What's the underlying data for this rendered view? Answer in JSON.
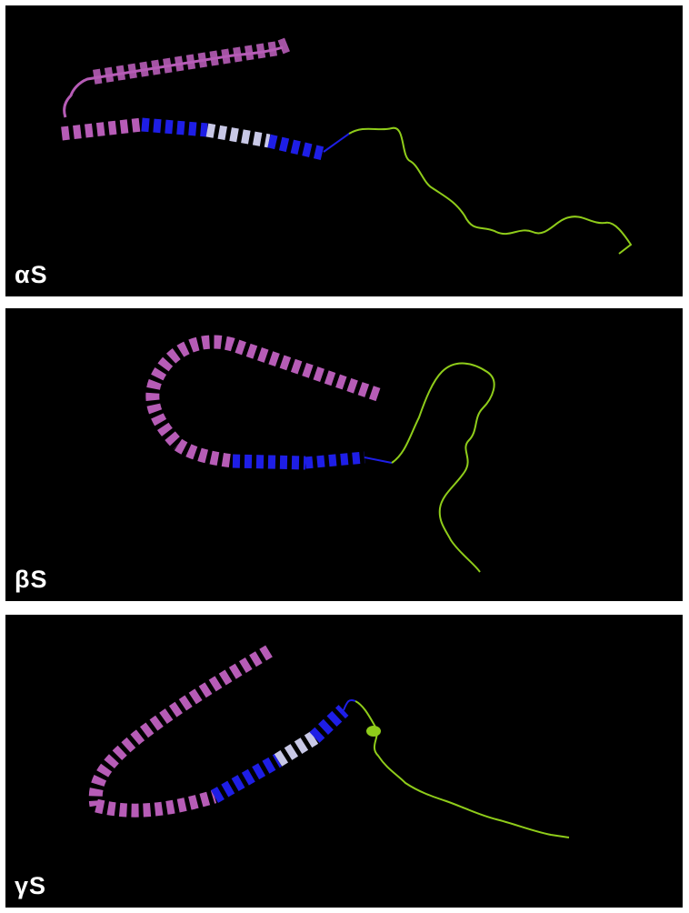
{
  "panels": [
    {
      "label": "αS"
    },
    {
      "label": "βS"
    },
    {
      "label": "γS"
    }
  ],
  "colors": {
    "background": "#000000",
    "helix_n_terminal": "#b65cb6",
    "helix_nac_region": "#1e1ee6",
    "helix_light_segment": "#c8c8e6",
    "c_terminal_tail": "#8fcc1a"
  }
}
